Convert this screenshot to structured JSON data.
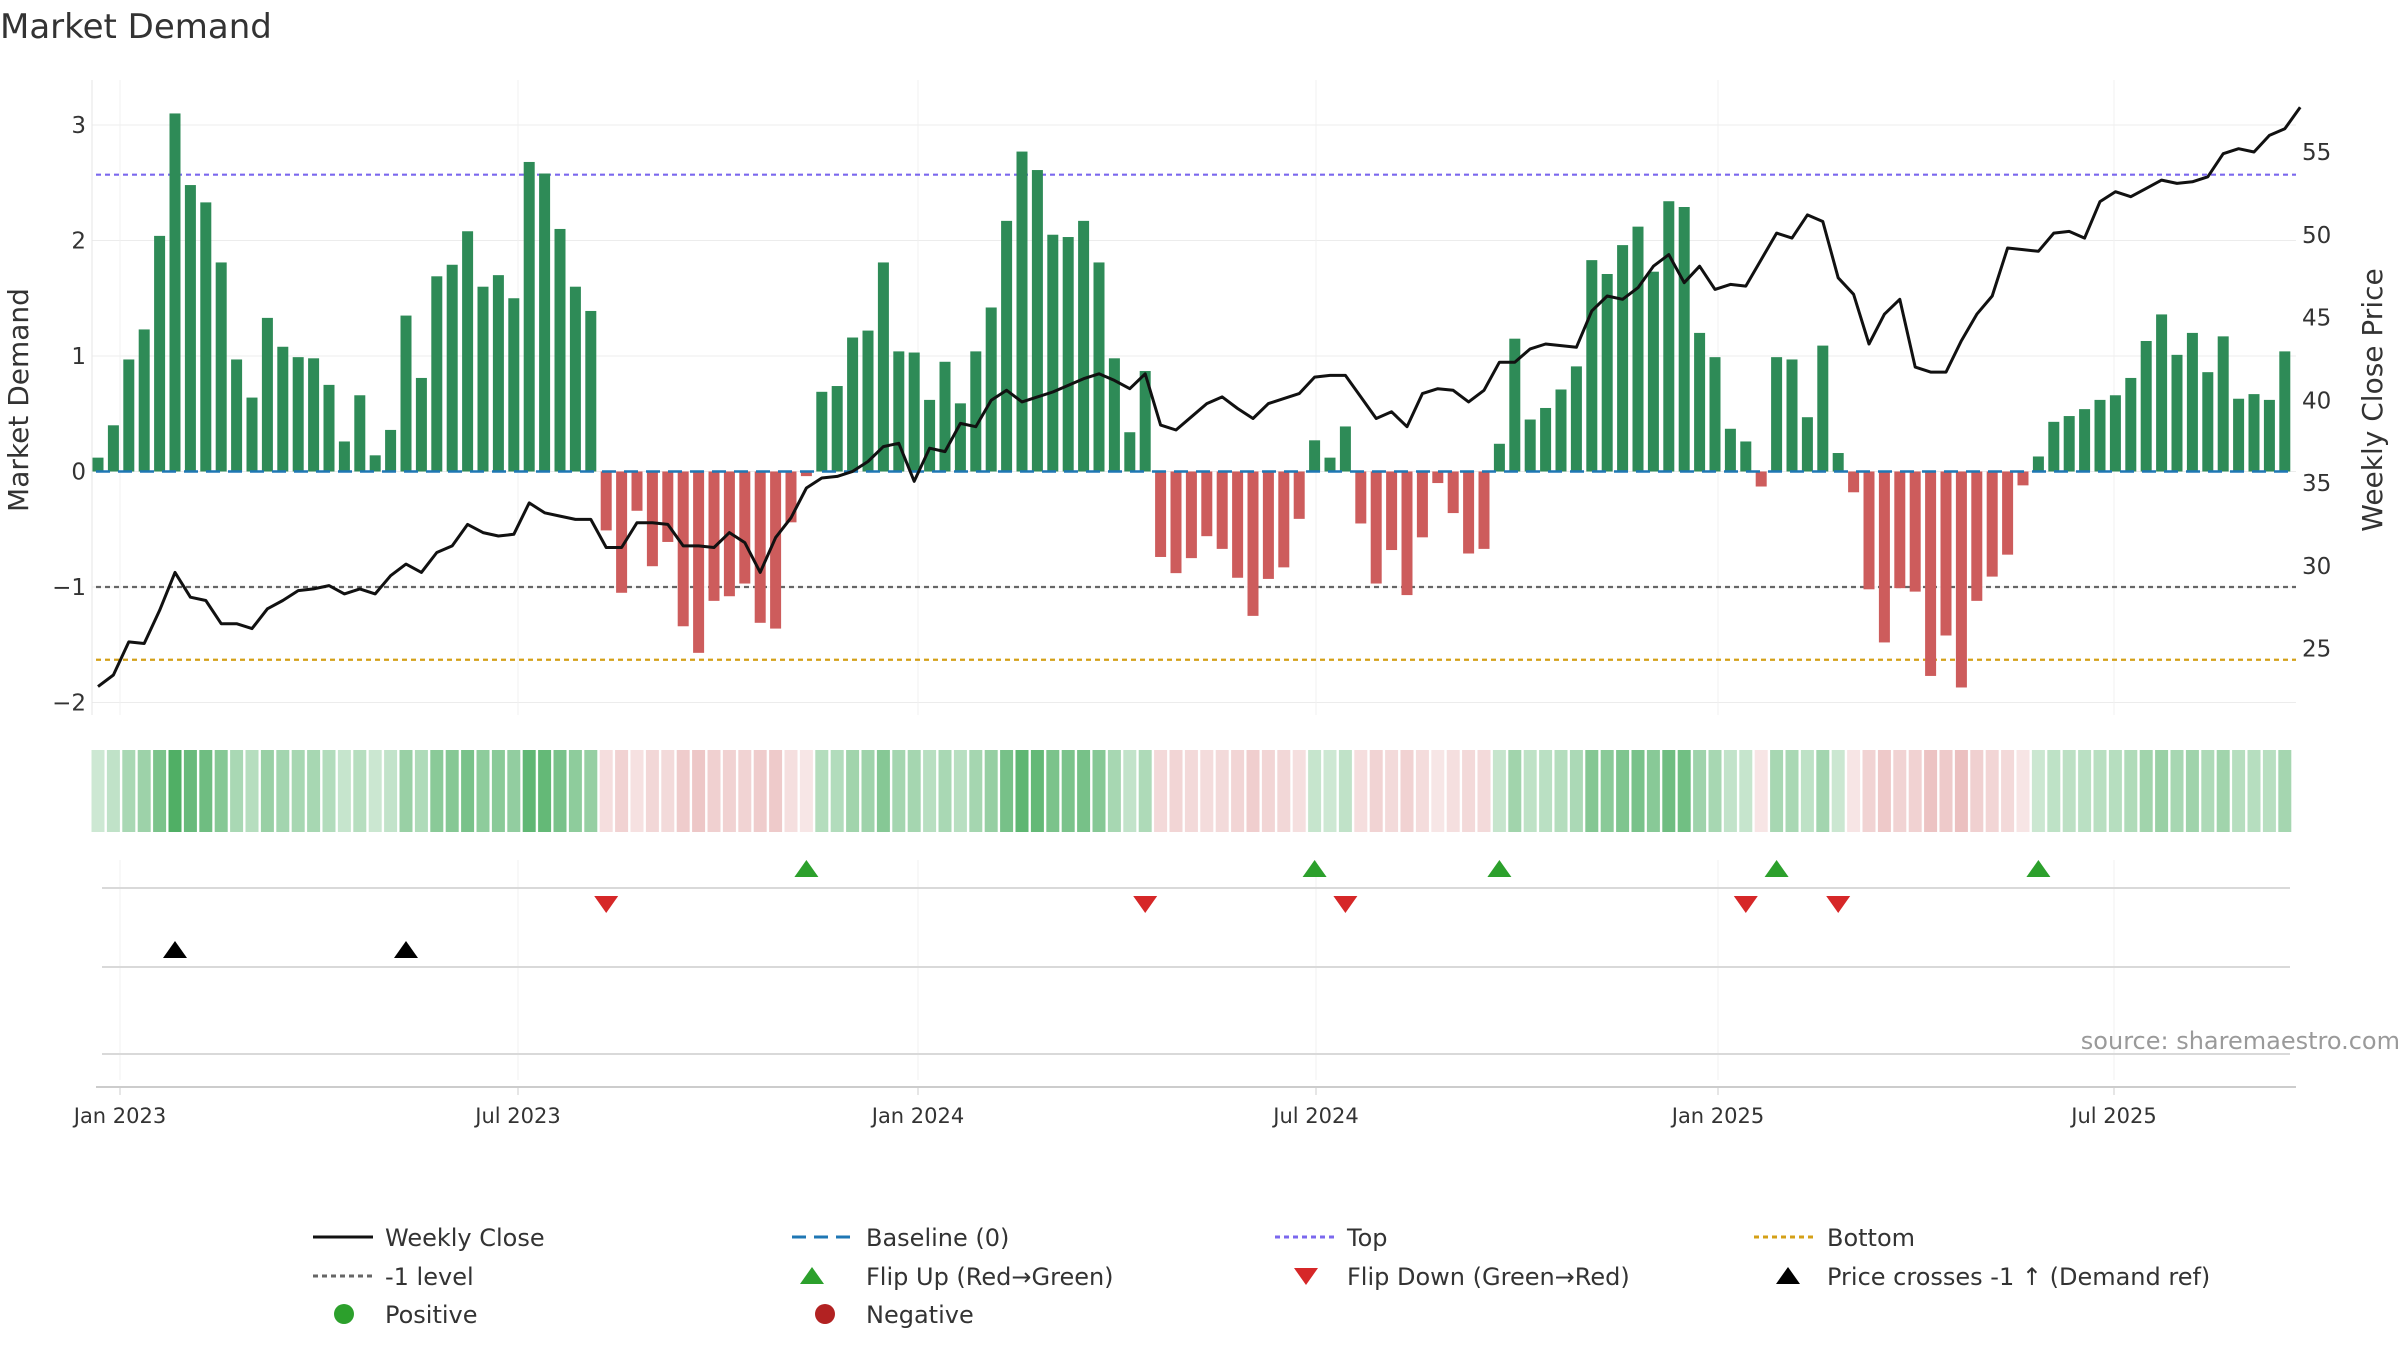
{
  "chart_data": {
    "type": "bar",
    "title": "Market Demand",
    "ylabel": "Market Demand",
    "y2label": "Weekly Close Price",
    "ylim": [
      -2.2,
      3.2
    ],
    "y2lim": [
      21.5,
      57.8
    ],
    "yticks": [
      "3",
      "2",
      "1",
      "0",
      "−1",
      "−2"
    ],
    "y2ticks": [
      "55",
      "50",
      "45",
      "40",
      "35",
      "30",
      "25"
    ],
    "x_ticks": [
      "Jan 2023",
      "Jul 2023",
      "Jan 2024",
      "Jul 2024",
      "Jan 2025",
      "Jul 2025"
    ],
    "reference_lines": {
      "top": 2.57,
      "minus_one": -1.0,
      "bottom": -1.63,
      "baseline": 0
    },
    "colors": {
      "positive": "#2e8b57",
      "negative": "#cd5c5c",
      "close": "#111111",
      "baseline": "#1f77b4",
      "top": "#7b68ee",
      "minus_one": "#666666",
      "bottom": "#d4a017",
      "flip_up": "#2ca02c",
      "flip_down": "#d62728",
      "cross": "#000000",
      "positive_dot": "#2ca02c",
      "negative_dot": "#b22222"
    },
    "series": [
      {
        "name": "Market Demand",
        "type": "bar",
        "values": [
          0.12,
          0.4,
          0.97,
          1.23,
          2.04,
          3.1,
          2.48,
          2.33,
          1.81,
          0.97,
          0.64,
          1.33,
          1.08,
          0.99,
          0.98,
          0.75,
          0.26,
          0.66,
          0.14,
          0.36,
          1.35,
          0.81,
          1.69,
          1.79,
          2.08,
          1.6,
          1.7,
          1.5,
          2.68,
          2.58,
          2.1,
          1.6,
          1.39,
          -0.51,
          -1.05,
          -0.34,
          -0.82,
          -0.61,
          -1.34,
          -1.57,
          -1.12,
          -1.08,
          -0.97,
          -1.31,
          -1.36,
          -0.44,
          -0.04,
          0.69,
          0.74,
          1.16,
          1.22,
          1.81,
          1.04,
          1.03,
          0.62,
          0.95,
          0.59,
          1.04,
          1.42,
          2.17,
          2.77,
          2.61,
          2.05,
          2.03,
          2.17,
          1.81,
          0.98,
          0.34,
          0.87,
          -0.74,
          -0.88,
          -0.75,
          -0.56,
          -0.67,
          -0.92,
          -1.25,
          -0.93,
          -0.83,
          -0.41,
          0.27,
          0.12,
          0.39,
          -0.45,
          -0.97,
          -0.68,
          -1.07,
          -0.57,
          -0.1,
          -0.36,
          -0.71,
          -0.67,
          0.24,
          1.15,
          0.45,
          0.55,
          0.71,
          0.91,
          1.83,
          1.71,
          1.96,
          2.12,
          1.73,
          2.34,
          2.29,
          1.2,
          0.99,
          0.37,
          0.26,
          -0.13,
          0.99,
          0.97,
          0.47,
          1.09,
          0.16,
          -0.18,
          -1.02,
          -1.48,
          -1.01,
          -1.04,
          -1.77,
          -1.42,
          -1.87,
          -1.12,
          -0.91,
          -0.72,
          -0.12,
          0.13,
          0.43,
          0.48,
          0.54,
          0.62,
          0.66,
          0.81,
          1.13,
          1.36,
          1.01,
          1.2,
          0.86,
          1.17,
          0.63,
          0.67,
          0.62,
          1.04
        ]
      },
      {
        "name": "Weekly Close",
        "type": "line",
        "values": [
          22.7,
          23.4,
          25.4,
          25.3,
          27.3,
          29.6,
          28.1,
          27.9,
          26.5,
          26.5,
          26.2,
          27.4,
          27.9,
          28.5,
          28.6,
          28.8,
          28.3,
          28.6,
          28.3,
          29.4,
          30.1,
          29.6,
          30.8,
          31.2,
          32.5,
          32.0,
          31.8,
          31.9,
          33.8,
          33.2,
          33.0,
          32.8,
          32.8,
          31.1,
          31.1,
          32.6,
          32.6,
          32.5,
          31.2,
          31.2,
          31.1,
          32.0,
          31.4,
          29.6,
          31.7,
          32.9,
          34.7,
          35.3,
          35.4,
          35.7,
          36.3,
          37.2,
          37.4,
          35.1,
          37.1,
          36.9,
          38.6,
          38.4,
          40.0,
          40.6,
          39.9,
          40.2,
          40.5,
          40.9,
          41.3,
          41.6,
          41.2,
          40.7,
          41.6,
          38.5,
          38.2,
          39.0,
          39.8,
          40.2,
          39.5,
          38.9,
          39.8,
          40.1,
          40.4,
          41.4,
          41.5,
          41.5,
          40.2,
          38.9,
          39.3,
          38.4,
          40.4,
          40.7,
          40.6,
          39.9,
          40.6,
          42.3,
          42.3,
          43.1,
          43.4,
          43.3,
          43.2,
          45.4,
          46.3,
          46.1,
          46.8,
          48.1,
          48.8,
          47.1,
          48.1,
          46.7,
          47.0,
          46.9,
          48.5,
          50.1,
          49.8,
          51.2,
          50.8,
          47.4,
          46.4,
          43.4,
          45.2,
          46.1,
          42.0,
          41.7,
          41.7,
          43.6,
          45.2,
          46.3,
          49.2,
          49.1,
          49.0,
          50.1,
          50.2,
          49.8,
          52.0,
          52.6,
          52.3,
          52.8,
          53.3,
          53.1,
          53.2,
          53.5,
          54.9,
          55.2,
          55.0,
          56.0,
          56.4,
          57.7
        ]
      }
    ],
    "flip_up_index": [
      46,
      79,
      91,
      109,
      126
    ],
    "flip_down_index": [
      33,
      68,
      81,
      107,
      113
    ],
    "price_cross_index": [
      5,
      20
    ],
    "legend": {
      "weekly_close": "Weekly Close",
      "baseline": "Baseline (0)",
      "top": "Top",
      "bottom": "Bottom",
      "minus_one": "-1 level",
      "flip_up": "Flip Up (Red→Green)",
      "flip_down": "Flip Down (Green→Red)",
      "price_cross": "Price crosses -1 ↑ (Demand ref)",
      "positive": "Positive",
      "negative": "Negative"
    },
    "source": "source: sharemaestro.com"
  }
}
